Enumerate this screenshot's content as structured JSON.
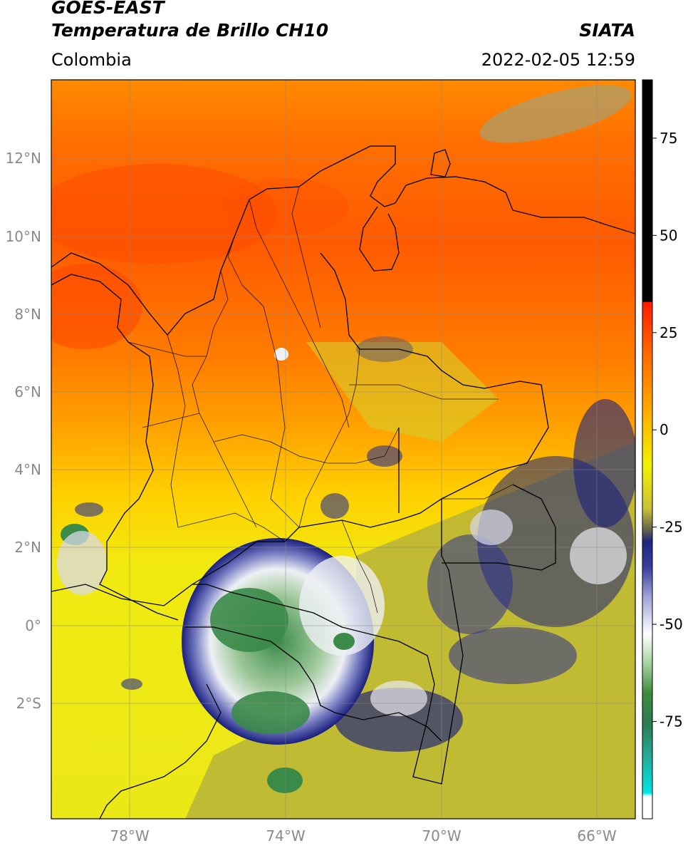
{
  "header": {
    "satellite": "GOES-EAST",
    "product": "Temperatura de Brillo CH10",
    "region": "Colombia",
    "organization": "SIATA",
    "timestamp": "2022-02-05 12:59"
  },
  "map": {
    "extent": {
      "lon_min": -80,
      "lon_max": -65,
      "lat_min": -5,
      "lat_max": 14
    },
    "lat_ticks": [
      {
        "value": 12,
        "label": "12°N"
      },
      {
        "value": 10,
        "label": "10°N"
      },
      {
        "value": 8,
        "label": "8°N"
      },
      {
        "value": 6,
        "label": "6°N"
      },
      {
        "value": 4,
        "label": "4°N"
      },
      {
        "value": 2,
        "label": "2°N"
      },
      {
        "value": 0,
        "label": "0°"
      },
      {
        "value": -2,
        "label": "2°S"
      }
    ],
    "lon_ticks": [
      {
        "value": -78,
        "label": "78°W"
      },
      {
        "value": -74,
        "label": "74°W"
      },
      {
        "value": -70,
        "label": "70°W"
      },
      {
        "value": -66,
        "label": "66°W"
      }
    ],
    "grid": true,
    "colors": {
      "warm": "#ff5500",
      "orange": "#ff9a00",
      "yellow": "#f2ee12",
      "olive": "#b8b23a",
      "navy": "#1a1f7e",
      "white": "#f2f2f2",
      "green": "#3a8a48",
      "border": "#000000"
    }
  },
  "colorbar": {
    "range": [
      -100,
      90
    ],
    "ticks": [
      {
        "value": 75,
        "label": "75"
      },
      {
        "value": 50,
        "label": "50"
      },
      {
        "value": 25,
        "label": "25"
      },
      {
        "value": 0,
        "label": "0"
      },
      {
        "value": -25,
        "label": "-25"
      },
      {
        "value": -50,
        "label": "-50"
      },
      {
        "value": -75,
        "label": "-75"
      }
    ]
  }
}
